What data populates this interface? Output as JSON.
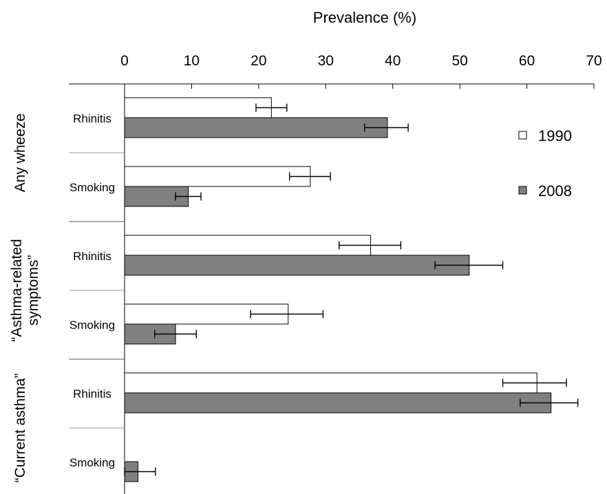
{
  "chart_data": {
    "type": "bar",
    "orientation": "horizontal",
    "xlabel": "Prevalence (%)",
    "xlim": [
      0,
      70
    ],
    "x_ticks": [
      "0",
      "10",
      "20",
      "30",
      "40",
      "50",
      "60",
      "70"
    ],
    "x_tick_values": [
      0,
      10,
      20,
      30,
      40,
      50,
      60,
      70
    ],
    "grid": false,
    "legend_position": "right",
    "legend": [
      "1990",
      "2008"
    ],
    "colors": {
      "1990": "#ffffff",
      "2008": "#808080",
      "outline": "#000000",
      "separator": "#9a9a9a"
    },
    "groups": [
      {
        "label": "Any wheeze",
        "label_lines": [
          "Any wheeze"
        ]
      },
      {
        "label": "“Asthma-related symptoms”",
        "label_lines": [
          "“Asthma-related",
          "symptoms”"
        ]
      },
      {
        "label": "“Current asthma”",
        "label_lines": [
          "“Current asthma”"
        ]
      }
    ],
    "categories": [
      {
        "label": "Rhinitis",
        "group": 0
      },
      {
        "label": "Smoking",
        "group": 0
      },
      {
        "label": "Rhinitis",
        "group": 1
      },
      {
        "label": "Smoking",
        "group": 1
      },
      {
        "label": "Rhinitis",
        "group": 2
      },
      {
        "label": "Smoking",
        "group": 2
      }
    ],
    "series": [
      {
        "name": "1990",
        "values": [
          21.9,
          27.7,
          36.7,
          24.4,
          61.5,
          null
        ],
        "error_low": [
          19.6,
          24.6,
          32.0,
          18.8,
          56.4,
          null
        ],
        "error_high": [
          24.2,
          30.7,
          41.2,
          29.6,
          65.9,
          null
        ]
      },
      {
        "name": "2008",
        "values": [
          39.2,
          9.5,
          51.4,
          7.6,
          63.6,
          2.0
        ],
        "error_low": [
          35.8,
          7.6,
          46.3,
          4.5,
          59.0,
          0.0
        ],
        "error_high": [
          42.3,
          11.4,
          56.4,
          10.7,
          67.6,
          4.6
        ]
      }
    ]
  }
}
